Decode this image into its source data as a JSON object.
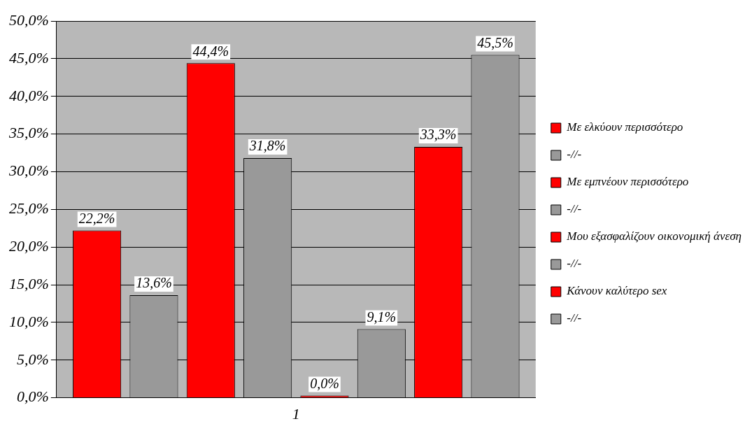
{
  "chart_data": {
    "type": "bar",
    "categories": [
      "1"
    ],
    "series": [
      {
        "name": "Με ελκύουν περισσότερο",
        "color": "#ff0000",
        "values": [
          22.2
        ],
        "value_labels": [
          "22,2%"
        ]
      },
      {
        "name": "-//-",
        "color": "#999999",
        "values": [
          13.6
        ],
        "value_labels": [
          "13,6%"
        ]
      },
      {
        "name": "Με εμπνέουν περισσότερο",
        "color": "#ff0000",
        "values": [
          44.4
        ],
        "value_labels": [
          "44,4%"
        ]
      },
      {
        "name": "-//-",
        "color": "#999999",
        "values": [
          31.8
        ],
        "value_labels": [
          "31,8%"
        ]
      },
      {
        "name": "Μου εξασφαλίζουν οικονομική άνεση",
        "color": "#ff0000",
        "values": [
          0.0
        ],
        "value_labels": [
          "0,0%"
        ]
      },
      {
        "name": "-//-",
        "color": "#999999",
        "values": [
          9.1
        ],
        "value_labels": [
          "9,1%"
        ]
      },
      {
        "name": "Κάνουν καλύτερο sex",
        "color": "#ff0000",
        "values": [
          33.3
        ],
        "value_labels": [
          "33,3%"
        ]
      },
      {
        "name": "-//-",
        "color": "#999999",
        "values": [
          45.5
        ],
        "value_labels": [
          "45,5%"
        ]
      }
    ],
    "ylim": [
      0,
      50
    ],
    "yticks": [
      {
        "value": 0,
        "label": "0,0%"
      },
      {
        "value": 5,
        "label": "5,0%"
      },
      {
        "value": 10,
        "label": "10,0%"
      },
      {
        "value": 15,
        "label": "15,0%"
      },
      {
        "value": 20,
        "label": "20,0%"
      },
      {
        "value": 25,
        "label": "25,0%"
      },
      {
        "value": 30,
        "label": "30,0%"
      },
      {
        "value": 35,
        "label": "35,0%"
      },
      {
        "value": 40,
        "label": "40,0%"
      },
      {
        "value": 45,
        "label": "45,0%"
      },
      {
        "value": 50,
        "label": "50,0%"
      }
    ],
    "grid": "y",
    "legend": "right"
  }
}
